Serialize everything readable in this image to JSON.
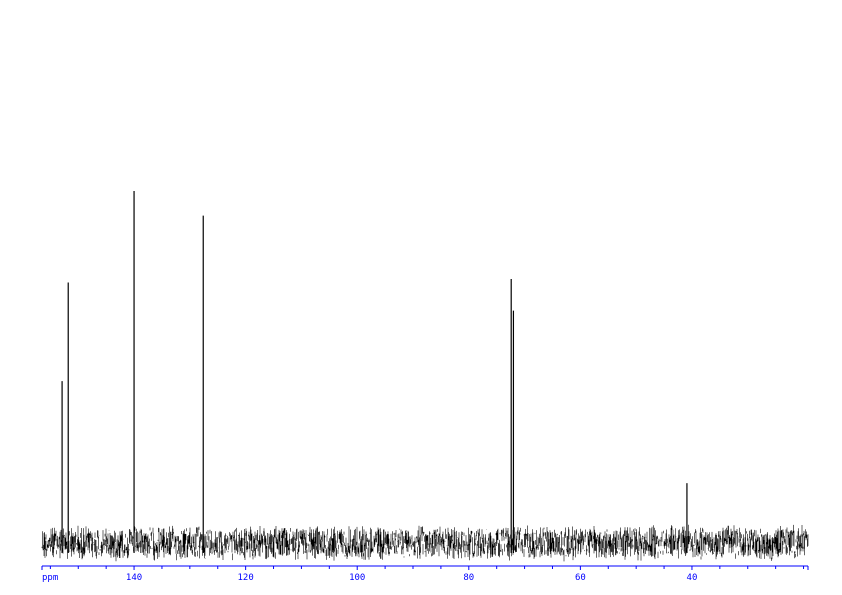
{
  "chart_data": {
    "type": "line",
    "title": "",
    "xlabel": "ppm",
    "ylabel": "",
    "x_unit_label": "ppm",
    "xlim": [
      156.5,
      19.2
    ],
    "x_reversed": true,
    "major_ticks": [
      140,
      120,
      100,
      80,
      60,
      40
    ],
    "tick_labels": [
      "140",
      "120",
      "100",
      "80",
      "60",
      "40"
    ],
    "minor_tick_step": 5,
    "grid": false,
    "legend": "none",
    "baseline_noise_level": 0.045,
    "peaks": [
      {
        "ppm": 152.9,
        "intensity": 0.46
      },
      {
        "ppm": 151.8,
        "intensity": 0.74
      },
      {
        "ppm": 140.0,
        "intensity": 1.0
      },
      {
        "ppm": 127.6,
        "intensity": 0.93
      },
      {
        "ppm": 72.4,
        "intensity": 0.75
      },
      {
        "ppm": 72.0,
        "intensity": 0.66
      },
      {
        "ppm": 40.9,
        "intensity": 0.17
      }
    ],
    "colors": {
      "spectrum": "#000000",
      "axis": "#0000ff"
    }
  }
}
